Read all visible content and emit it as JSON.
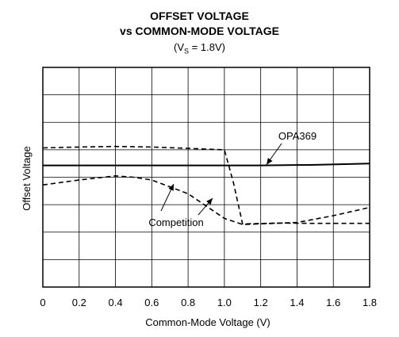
{
  "chart_data": {
    "type": "line",
    "title": "OFFSET VOLTAGE",
    "title2": "vs COMMON-MODE VOLTAGE",
    "subtitle_prefix": "(V",
    "subtitle_sub": "S",
    "subtitle_suffix": " = 1.8V)",
    "xlabel": "Common-Mode Voltage (V)",
    "ylabel": "Offset Voltage",
    "xlim": [
      0,
      1.8
    ],
    "x_ticks": [
      "0",
      "0.2",
      "0.4",
      "0.6",
      "0.8",
      "1.0",
      "1.2",
      "1.4",
      "1.6",
      "1.8"
    ],
    "y_grid_divisions": 8,
    "grid": true,
    "series": [
      {
        "name": "OPA369",
        "style": "solid",
        "x": [
          0,
          0.4,
          0.8,
          1.2,
          1.5,
          1.8
        ],
        "y": [
          4.43,
          4.43,
          4.43,
          4.43,
          4.45,
          4.5
        ]
      },
      {
        "name": "Competition",
        "style": "dashed",
        "x": [
          0,
          0.2,
          0.4,
          0.6,
          0.8,
          1.0,
          1.05,
          1.1,
          1.3,
          1.5,
          1.8
        ],
        "y": [
          5.07,
          5.1,
          5.12,
          5.1,
          5.05,
          5.0,
          3.8,
          2.3,
          2.33,
          2.32,
          2.32
        ]
      },
      {
        "name": "Competition",
        "style": "dashed",
        "x": [
          0,
          0.2,
          0.4,
          0.5,
          0.6,
          0.8,
          0.9,
          1.0,
          1.1,
          1.4,
          1.6,
          1.8
        ],
        "y": [
          3.72,
          3.9,
          4.05,
          4.0,
          3.9,
          3.4,
          2.95,
          2.5,
          2.28,
          2.35,
          2.6,
          2.9
        ]
      }
    ],
    "annotations": [
      "OPA369",
      "Competition"
    ]
  }
}
